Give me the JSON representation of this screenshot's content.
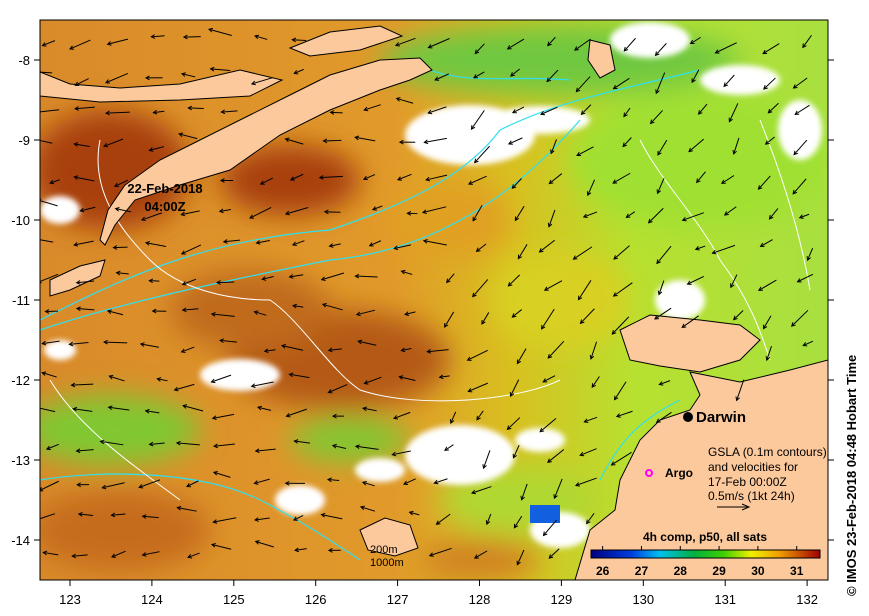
{
  "map": {
    "date_label_line1": "22-Feb-2018",
    "date_label_line2": "04:00Z",
    "city_label": "Darwin",
    "argo_label": "Argo",
    "legend_lines": [
      "GSLA (0.1m contours)",
      "and velocities for",
      "17-Feb 00:00Z",
      "0.5m/s (1kt 24h)"
    ],
    "depth_labels": [
      "200m",
      "1000m"
    ],
    "colorbar_title": "4h comp, p50, all sats",
    "colorbar_ticks": [
      "26",
      "27",
      "28",
      "29",
      "30",
      "31"
    ],
    "colorbar_range": [
      25.7,
      31.6
    ],
    "x_ticks": [
      "123",
      "124",
      "125",
      "126",
      "127",
      "128",
      "129",
      "130",
      "131",
      "132"
    ],
    "y_ticks": [
      "-8",
      "-9",
      "-10",
      "-11",
      "-12",
      "-13",
      "-14"
    ],
    "credit": "© IMOS 23-Feb-2018 04:48 Hobart Time"
  },
  "colors": {
    "land": "#fcc99c",
    "contour_depth": "#30e0f0",
    "contour_gsla": "#ffffff",
    "argo": "#ff00ff"
  }
}
